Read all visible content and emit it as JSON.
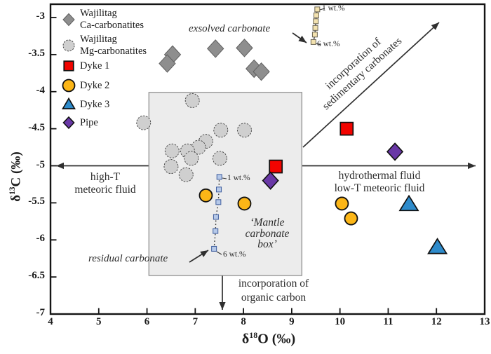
{
  "chart_data": {
    "type": "scatter",
    "title": "",
    "xlabel": {
      "prefix": "δ",
      "sup": "18",
      "suffix": "O (‰)",
      "plain": "δ18O (‰)"
    },
    "ylabel": {
      "prefix": "δ",
      "sup": "13",
      "suffix": "C (‰)",
      "plain": "δ13C (‰)"
    },
    "xlim": [
      4,
      13
    ],
    "ylim": [
      -7,
      -2.82
    ],
    "x_ticks": [
      "4",
      "5",
      "6",
      "7",
      "8",
      "9",
      "10",
      "11",
      "12",
      "13"
    ],
    "y_ticks": [
      "-3",
      "-3.5",
      "-4",
      "-4.5",
      "-5",
      "-5.5",
      "-6",
      "-6.5",
      "-7"
    ],
    "grid": false,
    "legend_position": "top-left-inside",
    "series": [
      {
        "name": "Wajilitag Ca-carbonatites",
        "legend_lines": [
          "Wajilitag",
          "Ca-carbonatites"
        ],
        "marker": "diamond",
        "marker_key": "ca-diamond",
        "color": "#8e8e8e",
        "points": [
          [
            6.53,
            -3.5
          ],
          [
            6.42,
            -3.62
          ],
          [
            7.42,
            -3.42
          ],
          [
            8.02,
            -3.41
          ],
          [
            8.22,
            -3.69
          ],
          [
            8.37,
            -3.73
          ]
        ]
      },
      {
        "name": "Wajilitag Mg-carbonatites",
        "legend_lines": [
          "Wajilitag",
          "Mg-carbonatites"
        ],
        "marker": "circle",
        "marker_key": "mg-circle",
        "color": "#cfcfcf",
        "points": [
          [
            6.94,
            -4.12
          ],
          [
            5.93,
            -4.42
          ],
          [
            7.53,
            -4.52
          ],
          [
            8.02,
            -4.52
          ],
          [
            7.22,
            -4.67
          ],
          [
            7.07,
            -4.75
          ],
          [
            6.52,
            -4.8
          ],
          [
            6.84,
            -4.8
          ],
          [
            6.92,
            -4.9
          ],
          [
            7.51,
            -4.9
          ],
          [
            6.5,
            -5.01
          ],
          [
            6.81,
            -5.12
          ]
        ]
      },
      {
        "name": "Dyke 1",
        "legend_lines": [
          "Dyke 1"
        ],
        "marker": "square",
        "marker_key": "red-square",
        "color": "#f20400",
        "points": [
          [
            8.67,
            -5.01
          ],
          [
            10.14,
            -4.5
          ]
        ]
      },
      {
        "name": "Dyke 2",
        "legend_lines": [
          "Dyke 2"
        ],
        "marker": "circle",
        "marker_key": "yellow-circle",
        "color": "#fcb617",
        "points": [
          [
            7.22,
            -5.4
          ],
          [
            8.02,
            -5.51
          ],
          [
            10.04,
            -5.51
          ],
          [
            10.23,
            -5.71
          ]
        ]
      },
      {
        "name": "Dyke 3",
        "legend_lines": [
          "Dyke 3"
        ],
        "marker": "triangle",
        "marker_key": "blue-triangle",
        "color": "#2e8bcb",
        "points": [
          [
            11.43,
            -5.52
          ],
          [
            12.02,
            -6.1
          ]
        ]
      },
      {
        "name": "Pipe",
        "legend_lines": [
          "Pipe"
        ],
        "marker": "diamond",
        "marker_key": "purple-diamond",
        "color": "#6938a6",
        "points": [
          [
            8.56,
            -5.2
          ],
          [
            11.14,
            -4.81
          ]
        ]
      }
    ],
    "trend_chains": [
      {
        "name": "exsolved carbonate",
        "line_style": "solid",
        "fill": "#f3e2af",
        "stroke": "#6b6452",
        "start_label": "1 wt.%",
        "end_label": "6 wt.%",
        "points": [
          [
            9.53,
            -2.89
          ],
          [
            9.51,
            -2.97
          ],
          [
            9.5,
            -3.05
          ],
          [
            9.49,
            -3.14
          ],
          [
            9.48,
            -3.23
          ],
          [
            9.45,
            -3.33
          ]
        ]
      },
      {
        "name": "residual carbonate",
        "line_style": "dotted",
        "fill": "#b6c9e9",
        "stroke": "#3f5e9e",
        "start_label": "1 wt.%",
        "end_label": "6 wt.%",
        "points": [
          [
            7.5,
            -5.15
          ],
          [
            7.49,
            -5.32
          ],
          [
            7.48,
            -5.49
          ],
          [
            7.43,
            -5.69
          ],
          [
            7.42,
            -5.88
          ],
          [
            7.39,
            -6.12
          ]
        ]
      }
    ],
    "mantle_box": {
      "x_range": [
        6.04,
        9.21
      ],
      "y_range": [
        -6.48,
        -4.01
      ],
      "fill": "#ececec",
      "border": "#979797"
    },
    "annotations": {
      "exsolved_carbonate": "exsolved carbonate",
      "exsolved_top_pct": "1 wt.%",
      "exsolved_bottom_pct": "6 wt.%",
      "sedimentary_line1": "incorporation of",
      "sedimentary_line2": "sedimentary carbonates",
      "high_t_line1": "high-T",
      "high_t_line2": "meteoric fluid",
      "hydrothermal_line1": "hydrothermal fluid",
      "hydrothermal_line2": "low-T meteoric fluid",
      "mantle_line1": "‘Mantle",
      "mantle_line2": "carbonate",
      "mantle_line3": "box’",
      "residual_carbonate": "residual carbonate",
      "residual_top_pct": "1 wt.%",
      "residual_bottom_pct": "6 wt.%",
      "organic_line1": "incorporation of",
      "organic_line2": "organic carbon"
    }
  }
}
